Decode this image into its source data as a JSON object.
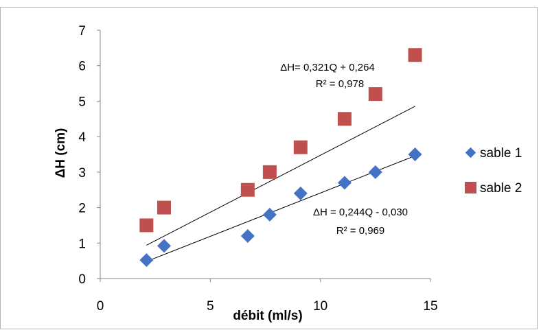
{
  "chart_data": {
    "type": "scatter",
    "title": "",
    "xlabel": "débit (ml/s)",
    "ylabel": "ΔH (cm)",
    "xlim": [
      0,
      15
    ],
    "ylim": [
      0,
      7
    ],
    "x_ticks": [
      "0",
      "5",
      "10",
      "15"
    ],
    "y_ticks": [
      "0",
      "1",
      "2",
      "3",
      "4",
      "5",
      "6",
      "7"
    ],
    "grid": false,
    "legend_position": "right",
    "series": [
      {
        "name": "sable 1",
        "marker": "diamond",
        "color": "#4472c4",
        "x": [
          2.1,
          2.9,
          6.7,
          7.7,
          9.1,
          11.1,
          12.5,
          14.3
        ],
        "y": [
          0.52,
          0.92,
          1.2,
          1.8,
          2.4,
          2.7,
          3.0,
          3.5
        ],
        "trendline": {
          "slope": 0.244,
          "intercept": -0.03,
          "equation": "ΔH = 0,244Q - 0,030",
          "r2": "R² = 0,969"
        }
      },
      {
        "name": "sable 2",
        "marker": "square",
        "color": "#c0504d",
        "x": [
          2.1,
          2.9,
          6.7,
          7.7,
          9.1,
          11.1,
          12.5,
          14.3
        ],
        "y": [
          1.5,
          2.0,
          2.5,
          3.0,
          3.7,
          4.5,
          5.2,
          6.3
        ],
        "trendline": {
          "slope": 0.321,
          "intercept": 0.264,
          "equation": "ΔH= 0,321Q + 0,264",
          "r2": "R² = 0,978"
        }
      }
    ]
  }
}
